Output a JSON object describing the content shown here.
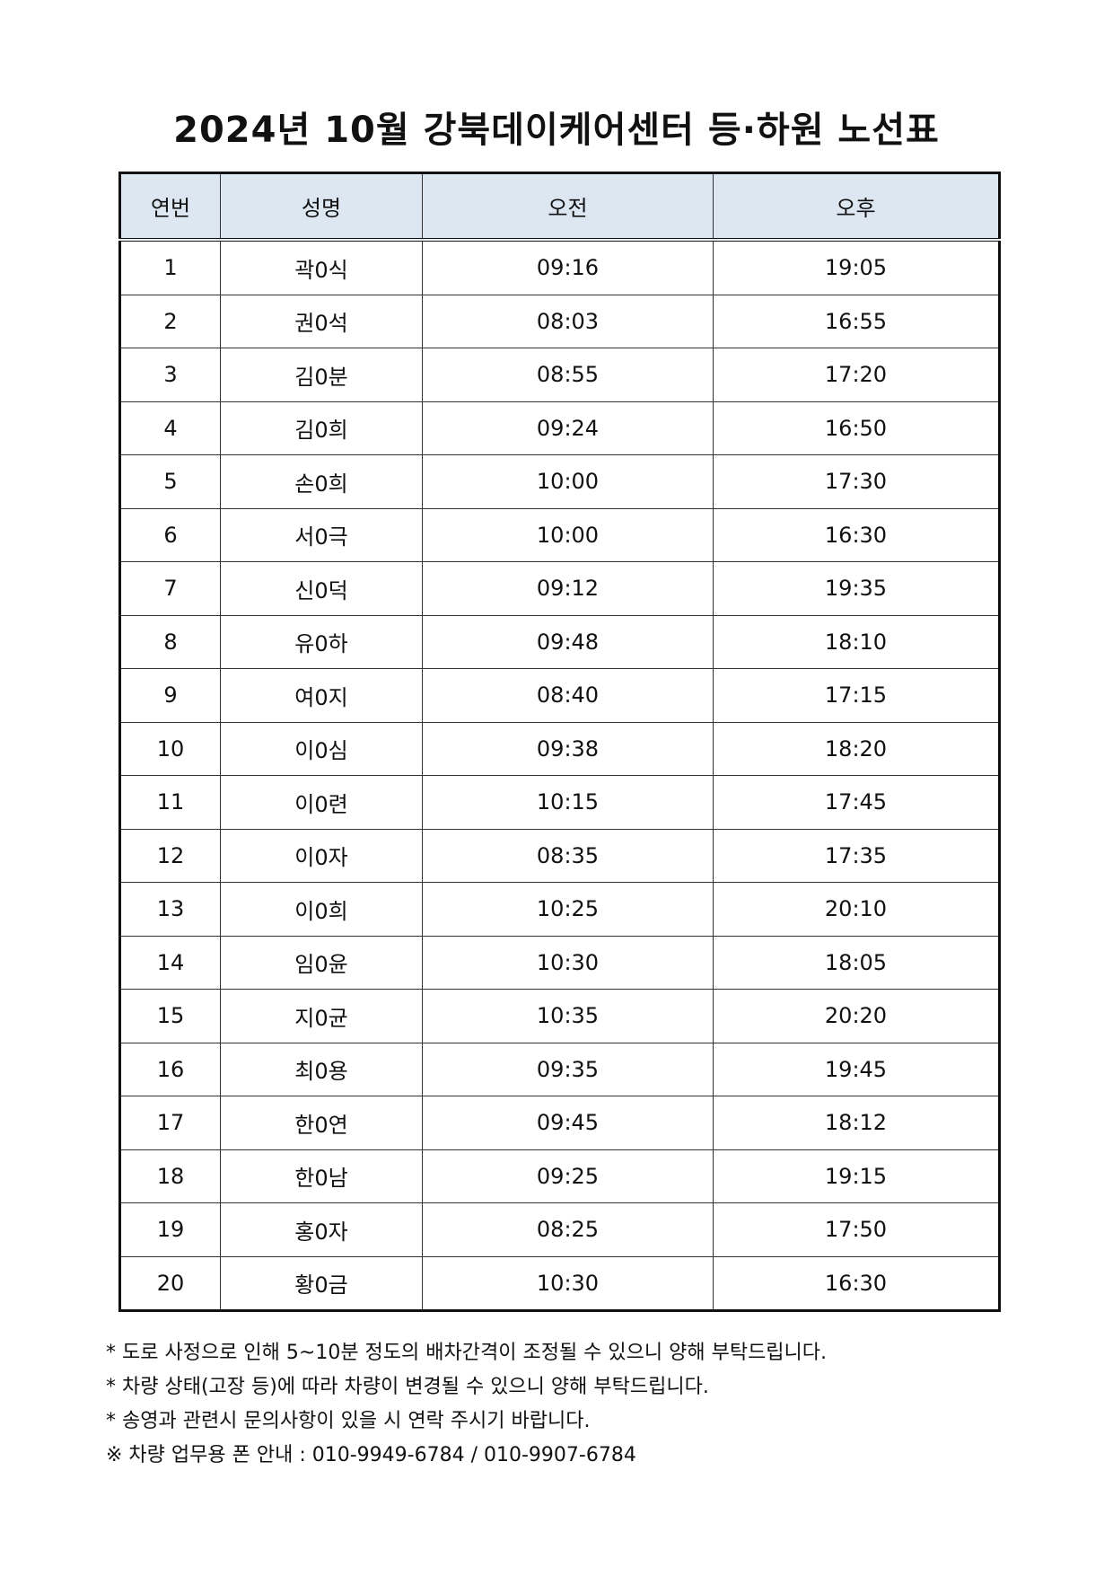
{
  "title": "2024년  10월  강북데이케어센터  등·하원  노선표",
  "table": {
    "headers": [
      "연번",
      "성명",
      "오전",
      "오후"
    ],
    "rows": [
      [
        "1",
        "곽0식",
        "09:16",
        "19:05"
      ],
      [
        "2",
        "권0석",
        "08:03",
        "16:55"
      ],
      [
        "3",
        "김0분",
        "08:55",
        "17:20"
      ],
      [
        "4",
        "김0희",
        "09:24",
        "16:50"
      ],
      [
        "5",
        "손0희",
        "10:00",
        "17:30"
      ],
      [
        "6",
        "서0극",
        "10:00",
        "16:30"
      ],
      [
        "7",
        "신0덕",
        "09:12",
        "19:35"
      ],
      [
        "8",
        "유0하",
        "09:48",
        "18:10"
      ],
      [
        "9",
        "여0지",
        "08:40",
        "17:15"
      ],
      [
        "10",
        "이0심",
        "09:38",
        "18:20"
      ],
      [
        "11",
        "이0련",
        "10:15",
        "17:45"
      ],
      [
        "12",
        "이0자",
        "08:35",
        "17:35"
      ],
      [
        "13",
        "이0희",
        "10:25",
        "20:10"
      ],
      [
        "14",
        "임0윤",
        "10:30",
        "18:05"
      ],
      [
        "15",
        "지0균",
        "10:35",
        "20:20"
      ],
      [
        "16",
        "최0용",
        "09:35",
        "19:45"
      ],
      [
        "17",
        "한0연",
        "09:45",
        "18:12"
      ],
      [
        "18",
        "한0남",
        "09:25",
        "19:15"
      ],
      [
        "19",
        "홍0자",
        "08:25",
        "17:50"
      ],
      [
        "20",
        "황0금",
        "10:30",
        "16:30"
      ]
    ]
  },
  "notes": [
    "* 도로 사정으로 인해 5~10분 정도의 배차간격이 조정될 수 있으니 양해 부탁드립니다.",
    "* 차량 상태(고장 등)에 따라 차량이 변경될 수 있으니 양해 부탁드립니다.",
    "* 송영과 관련시 문의사항이 있을 시 연락 주시기 바랍니다.",
    "※ 차량 업무용 폰 안내 : 010-9949-6784 / 010-9907-6784"
  ],
  "colors": {
    "header_bg": "#dde7f2"
  }
}
